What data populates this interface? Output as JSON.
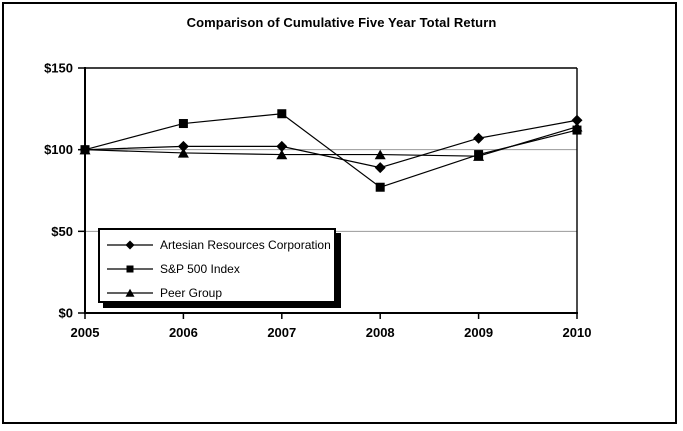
{
  "chart": {
    "title": "Comparison of Cumulative Five Year Total Return"
  },
  "chart_data": {
    "type": "line",
    "title": "Comparison of Cumulative Five Year Total Return",
    "categories": [
      "2005",
      "2006",
      "2007",
      "2008",
      "2009",
      "2010"
    ],
    "series": [
      {
        "name": "Artesian Resources Corporation",
        "marker": "diamond",
        "values": [
          100,
          102,
          102,
          89,
          107,
          118
        ]
      },
      {
        "name": "S&P 500 Index",
        "marker": "square",
        "values": [
          100,
          116,
          122,
          77,
          97,
          112
        ]
      },
      {
        "name": "Peer Group",
        "marker": "triangle",
        "values": [
          100,
          98,
          97,
          97,
          96,
          114
        ]
      }
    ],
    "xlabel": "",
    "ylabel": "",
    "ylim": [
      0,
      150
    ],
    "yticks": [
      {
        "value": 0,
        "label": "$0"
      },
      {
        "value": 50,
        "label": "$50"
      },
      {
        "value": 100,
        "label": "$100"
      },
      {
        "value": 150,
        "label": "$150"
      }
    ],
    "grid": "horizontal",
    "legend_position": "inside-bottom-left",
    "legend": [
      "Artesian Resources Corporation",
      "S&P 500 Index",
      "Peer Group"
    ],
    "colors": {
      "line": "#000000",
      "axis": "#000000",
      "grid": "#999999",
      "text": "#000000",
      "background": "#ffffff"
    }
  }
}
